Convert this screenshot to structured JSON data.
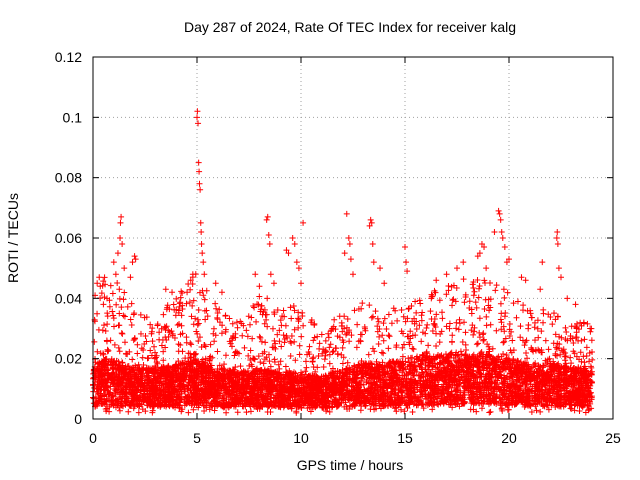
{
  "chart_data": {
    "type": "scatter",
    "title": "Day 287 of 2024, Rate Of TEC Index for receiver kalg",
    "xlabel": "GPS time / hours",
    "ylabel": "ROTI / TECUs",
    "xlim": [
      0,
      25
    ],
    "ylim": [
      0,
      0.12
    ],
    "x_ticks": [
      0,
      5,
      10,
      15,
      20,
      25
    ],
    "x_tick_labels": [
      "0",
      "5",
      "10",
      "15",
      "20",
      "25"
    ],
    "y_ticks": [
      0,
      0.02,
      0.04,
      0.06,
      0.08,
      0.1,
      0.12
    ],
    "y_tick_labels": [
      "0",
      "0.02",
      "0.04",
      "0.06",
      "0.08",
      "0.1",
      "0.12"
    ],
    "grid": true,
    "marker": "plus",
    "series_color": "#ff0000",
    "data_x_range": [
      0,
      24
    ],
    "density_profile": [
      {
        "hour": 0.0,
        "typical": 0.01,
        "upper": 0.03
      },
      {
        "hour": 0.5,
        "typical": 0.012,
        "upper": 0.045
      },
      {
        "hour": 1.0,
        "typical": 0.012,
        "upper": 0.045
      },
      {
        "hour": 1.5,
        "typical": 0.011,
        "upper": 0.04
      },
      {
        "hour": 2.0,
        "typical": 0.01,
        "upper": 0.035
      },
      {
        "hour": 3.0,
        "typical": 0.01,
        "upper": 0.03
      },
      {
        "hour": 4.0,
        "typical": 0.011,
        "upper": 0.04
      },
      {
        "hour": 5.0,
        "typical": 0.012,
        "upper": 0.048
      },
      {
        "hour": 6.0,
        "typical": 0.01,
        "upper": 0.035
      },
      {
        "hour": 7.0,
        "typical": 0.009,
        "upper": 0.03
      },
      {
        "hour": 8.0,
        "typical": 0.01,
        "upper": 0.04
      },
      {
        "hour": 9.0,
        "typical": 0.009,
        "upper": 0.035
      },
      {
        "hour": 10.0,
        "typical": 0.009,
        "upper": 0.038
      },
      {
        "hour": 11.0,
        "typical": 0.008,
        "upper": 0.025
      },
      {
        "hour": 12.0,
        "typical": 0.01,
        "upper": 0.035
      },
      {
        "hour": 13.0,
        "typical": 0.011,
        "upper": 0.038
      },
      {
        "hour": 14.0,
        "typical": 0.011,
        "upper": 0.035
      },
      {
        "hour": 15.0,
        "typical": 0.012,
        "upper": 0.035
      },
      {
        "hour": 16.0,
        "typical": 0.013,
        "upper": 0.04
      },
      {
        "hour": 17.0,
        "typical": 0.013,
        "upper": 0.042
      },
      {
        "hour": 18.0,
        "typical": 0.013,
        "upper": 0.045
      },
      {
        "hour": 19.0,
        "typical": 0.013,
        "upper": 0.045
      },
      {
        "hour": 20.0,
        "typical": 0.012,
        "upper": 0.04
      },
      {
        "hour": 21.0,
        "typical": 0.011,
        "upper": 0.035
      },
      {
        "hour": 22.0,
        "typical": 0.011,
        "upper": 0.035
      },
      {
        "hour": 23.0,
        "typical": 0.01,
        "upper": 0.03
      },
      {
        "hour": 24.0,
        "typical": 0.01,
        "upper": 0.03
      }
    ],
    "points": [
      {
        "x": 0.1,
        "y": 0.041
      },
      {
        "x": 0.2,
        "y": 0.045
      },
      {
        "x": 0.3,
        "y": 0.047
      },
      {
        "x": 0.35,
        "y": 0.044
      },
      {
        "x": 0.5,
        "y": 0.038
      },
      {
        "x": 1.0,
        "y": 0.052
      },
      {
        "x": 1.1,
        "y": 0.048
      },
      {
        "x": 1.2,
        "y": 0.055
      },
      {
        "x": 1.3,
        "y": 0.06
      },
      {
        "x": 1.32,
        "y": 0.065
      },
      {
        "x": 1.35,
        "y": 0.067
      },
      {
        "x": 1.4,
        "y": 0.058
      },
      {
        "x": 1.5,
        "y": 0.05
      },
      {
        "x": 1.8,
        "y": 0.047
      },
      {
        "x": 1.9,
        "y": 0.052
      },
      {
        "x": 2.0,
        "y": 0.054
      },
      {
        "x": 2.05,
        "y": 0.053
      },
      {
        "x": 3.5,
        "y": 0.043
      },
      {
        "x": 3.8,
        "y": 0.042
      },
      {
        "x": 4.7,
        "y": 0.046
      },
      {
        "x": 4.8,
        "y": 0.048
      },
      {
        "x": 5.0,
        "y": 0.1
      },
      {
        "x": 5.02,
        "y": 0.102
      },
      {
        "x": 5.05,
        "y": 0.098
      },
      {
        "x": 5.08,
        "y": 0.085
      },
      {
        "x": 5.1,
        "y": 0.082
      },
      {
        "x": 5.12,
        "y": 0.078
      },
      {
        "x": 5.15,
        "y": 0.076
      },
      {
        "x": 5.18,
        "y": 0.065
      },
      {
        "x": 5.2,
        "y": 0.062
      },
      {
        "x": 5.22,
        "y": 0.058
      },
      {
        "x": 5.25,
        "y": 0.055
      },
      {
        "x": 5.3,
        "y": 0.052
      },
      {
        "x": 5.35,
        "y": 0.048
      },
      {
        "x": 5.9,
        "y": 0.045
      },
      {
        "x": 6.2,
        "y": 0.042
      },
      {
        "x": 7.8,
        "y": 0.048
      },
      {
        "x": 8.0,
        "y": 0.044
      },
      {
        "x": 8.35,
        "y": 0.066
      },
      {
        "x": 8.4,
        "y": 0.067
      },
      {
        "x": 8.45,
        "y": 0.061
      },
      {
        "x": 8.5,
        "y": 0.058
      },
      {
        "x": 8.55,
        "y": 0.048
      },
      {
        "x": 8.7,
        "y": 0.045
      },
      {
        "x": 9.3,
        "y": 0.056
      },
      {
        "x": 9.4,
        "y": 0.055
      },
      {
        "x": 9.6,
        "y": 0.06
      },
      {
        "x": 9.7,
        "y": 0.058
      },
      {
        "x": 9.8,
        "y": 0.052
      },
      {
        "x": 9.9,
        "y": 0.05
      },
      {
        "x": 10.1,
        "y": 0.065
      },
      {
        "x": 10.0,
        "y": 0.045
      },
      {
        "x": 11.0,
        "y": 0.028
      },
      {
        "x": 11.5,
        "y": 0.03
      },
      {
        "x": 12.1,
        "y": 0.055
      },
      {
        "x": 12.2,
        "y": 0.068
      },
      {
        "x": 12.3,
        "y": 0.06
      },
      {
        "x": 12.35,
        "y": 0.058
      },
      {
        "x": 12.4,
        "y": 0.053
      },
      {
        "x": 12.5,
        "y": 0.048
      },
      {
        "x": 13.3,
        "y": 0.064
      },
      {
        "x": 13.35,
        "y": 0.066
      },
      {
        "x": 13.4,
        "y": 0.065
      },
      {
        "x": 13.45,
        "y": 0.058
      },
      {
        "x": 13.5,
        "y": 0.052
      },
      {
        "x": 13.8,
        "y": 0.05
      },
      {
        "x": 14.0,
        "y": 0.045
      },
      {
        "x": 15.0,
        "y": 0.057
      },
      {
        "x": 15.05,
        "y": 0.052
      },
      {
        "x": 15.1,
        "y": 0.049
      },
      {
        "x": 16.5,
        "y": 0.046
      },
      {
        "x": 17.0,
        "y": 0.048
      },
      {
        "x": 17.5,
        "y": 0.05
      },
      {
        "x": 17.8,
        "y": 0.052
      },
      {
        "x": 18.5,
        "y": 0.054
      },
      {
        "x": 18.6,
        "y": 0.055
      },
      {
        "x": 18.7,
        "y": 0.058
      },
      {
        "x": 18.8,
        "y": 0.057
      },
      {
        "x": 18.9,
        "y": 0.05
      },
      {
        "x": 19.3,
        "y": 0.062
      },
      {
        "x": 19.5,
        "y": 0.069
      },
      {
        "x": 19.55,
        "y": 0.068
      },
      {
        "x": 19.6,
        "y": 0.066
      },
      {
        "x": 19.65,
        "y": 0.062
      },
      {
        "x": 19.7,
        "y": 0.06
      },
      {
        "x": 19.8,
        "y": 0.057
      },
      {
        "x": 19.9,
        "y": 0.052
      },
      {
        "x": 20.0,
        "y": 0.053
      },
      {
        "x": 20.6,
        "y": 0.047
      },
      {
        "x": 20.8,
        "y": 0.046
      },
      {
        "x": 21.5,
        "y": 0.043
      },
      {
        "x": 21.6,
        "y": 0.052
      },
      {
        "x": 22.3,
        "y": 0.06
      },
      {
        "x": 22.32,
        "y": 0.062
      },
      {
        "x": 22.35,
        "y": 0.058
      },
      {
        "x": 22.4,
        "y": 0.05
      },
      {
        "x": 22.5,
        "y": 0.047
      },
      {
        "x": 22.8,
        "y": 0.04
      },
      {
        "x": 23.2,
        "y": 0.038
      },
      {
        "x": 23.6,
        "y": 0.032
      },
      {
        "x": 23.9,
        "y": 0.03
      }
    ]
  }
}
